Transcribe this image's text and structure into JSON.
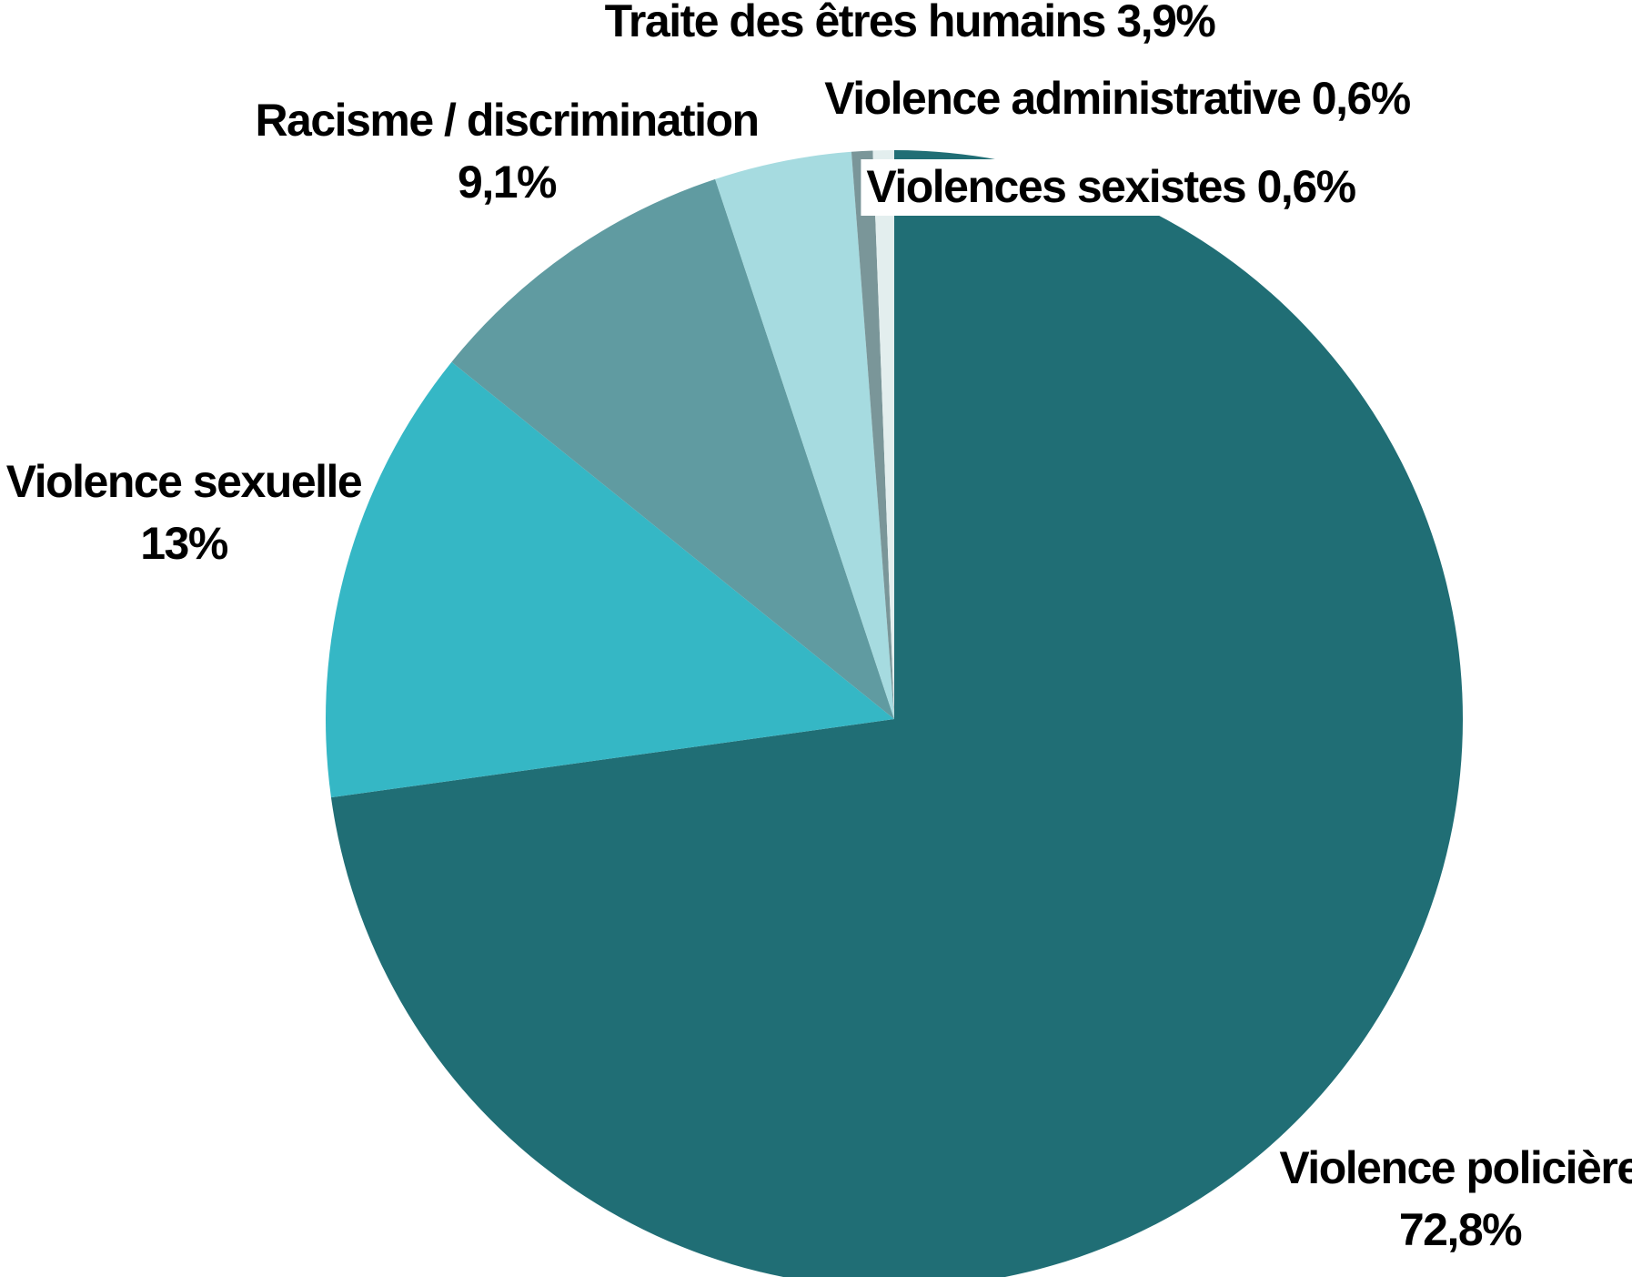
{
  "chart_data": {
    "type": "pie",
    "title": "",
    "slices": [
      {
        "name": "Violence policière",
        "value": 72.8,
        "label_lines": [
          "Violence policière",
          "72,8%"
        ],
        "color": "#206e75"
      },
      {
        "name": "Violence sexuelle",
        "value": 13,
        "label_lines": [
          "Violence sexuelle",
          "13%"
        ],
        "color": "#35b7c5"
      },
      {
        "name": "Racisme / discrimination",
        "value": 9.1,
        "label_lines": [
          "Racisme / discrimination",
          "9,1%"
        ],
        "color": "#609ba1"
      },
      {
        "name": "Traite des êtres humains",
        "value": 3.9,
        "label_lines": [
          "Traite des êtres humains 3,9%"
        ],
        "color": "#a6dbe0"
      },
      {
        "name": "Violence administrative",
        "value": 0.6,
        "label_lines": [
          "Violence administrative 0,6%"
        ],
        "color": "#7a9699"
      },
      {
        "name": "Violences sexistes",
        "value": 0.6,
        "label_lines": [
          "Violences sexistes 0,6%"
        ],
        "color": "#e3eeee"
      }
    ],
    "start_angle": "12 o'clock",
    "direction": "clockwise",
    "legend": "none",
    "labels": "outside"
  }
}
